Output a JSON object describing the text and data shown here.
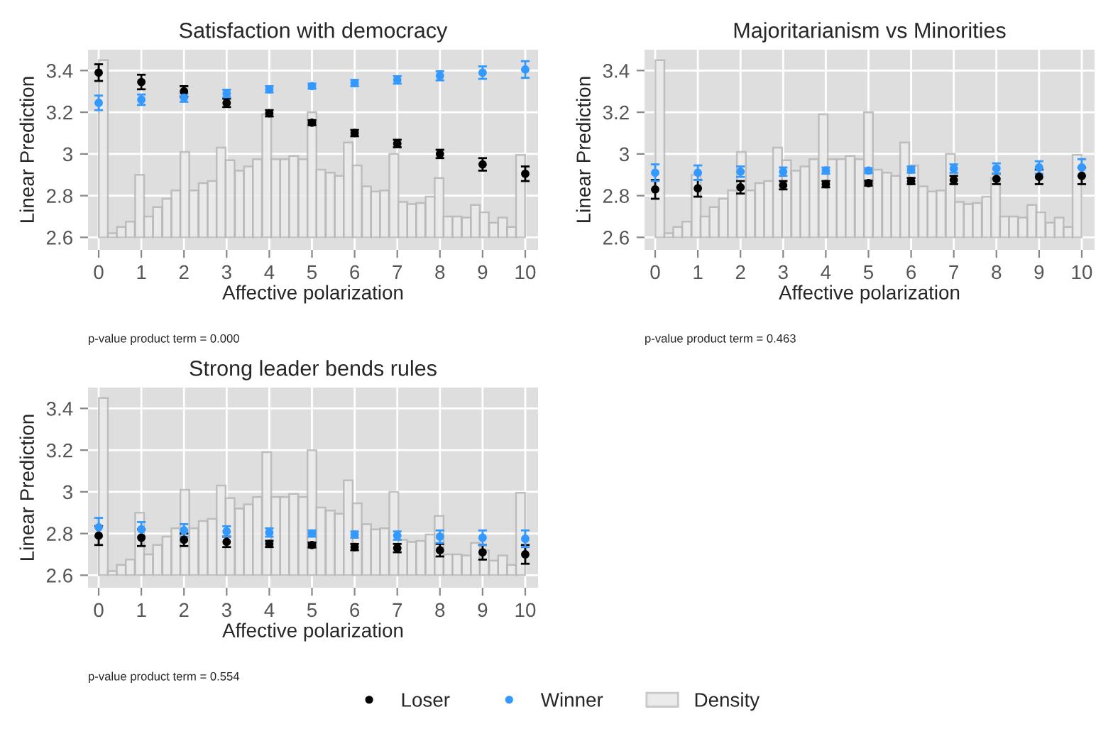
{
  "chart_data": [
    {
      "type": "scatter",
      "title": "Satisfaction with democracy",
      "xlabel": "Affective polarization",
      "ylabel": "Linear Prediction",
      "annotations": [
        "p-value product term = 0.000"
      ],
      "xlim": [
        -0.25,
        10.3
      ],
      "ylim": [
        2.54,
        3.5
      ],
      "xticks": [
        0,
        1,
        2,
        3,
        4,
        5,
        6,
        7,
        8,
        9,
        10
      ],
      "yticks": [
        2.6,
        2.8,
        3,
        3.2,
        3.4
      ],
      "grid": true,
      "legend": "bottom",
      "marker": "circle",
      "series": [
        {
          "name": "Density",
          "type": "bar",
          "color": "#ebebeb",
          "x": [
            0.11,
            0.32,
            0.53,
            0.74,
            0.96,
            1.17,
            1.38,
            1.6,
            1.81,
            2.02,
            2.23,
            2.45,
            2.66,
            2.87,
            3.08,
            3.3,
            3.51,
            3.72,
            3.94,
            4.15,
            4.36,
            4.57,
            4.79,
            5.0,
            5.21,
            5.43,
            5.64,
            5.85,
            6.06,
            6.28,
            6.49,
            6.7,
            6.92,
            7.13,
            7.34,
            7.55,
            7.77,
            7.98,
            8.19,
            8.4,
            8.62,
            8.83,
            9.04,
            9.26,
            9.47,
            9.68,
            9.89
          ],
          "values": [
            0.85,
            0.02,
            0.05,
            0.075,
            0.3,
            0.1,
            0.145,
            0.185,
            0.225,
            0.41,
            0.225,
            0.26,
            0.27,
            0.43,
            0.37,
            0.32,
            0.34,
            0.375,
            0.59,
            0.375,
            0.375,
            0.39,
            0.375,
            0.6,
            0.325,
            0.31,
            0.295,
            0.455,
            0.345,
            0.245,
            0.22,
            0.225,
            0.4,
            0.17,
            0.16,
            0.165,
            0.195,
            0.285,
            0.1,
            0.1,
            0.095,
            0.155,
            0.12,
            0.07,
            0.095,
            0.05,
            0.395
          ],
          "base": [
            2.6,
            2.6,
            2.6,
            2.6,
            2.6,
            2.6,
            2.6,
            2.6,
            2.6,
            2.6,
            2.6,
            2.6,
            2.6,
            2.6,
            2.6,
            2.6,
            2.6,
            2.6,
            2.6,
            2.6,
            2.6,
            2.6,
            2.6,
            2.6,
            2.6,
            2.6,
            2.6,
            2.6,
            2.6,
            2.6,
            2.6,
            2.6,
            2.6,
            2.6,
            2.6,
            2.6,
            2.6,
            2.6,
            2.6,
            2.6,
            2.6,
            2.6,
            2.6,
            2.6,
            2.6,
            2.6,
            2.6
          ]
        },
        {
          "name": "Loser",
          "color": "#000000",
          "x": [
            0,
            1,
            2,
            3,
            4,
            5,
            6,
            7,
            8,
            9,
            10
          ],
          "values": [
            3.39,
            3.345,
            3.3,
            3.245,
            3.195,
            3.15,
            3.1,
            3.05,
            3.0,
            2.95,
            2.905
          ],
          "errors": [
            0.04,
            0.035,
            0.025,
            0.02,
            0.015,
            0.012,
            0.015,
            0.018,
            0.02,
            0.03,
            0.035
          ]
        },
        {
          "name": "Winner",
          "color": "#3399ff",
          "x": [
            0,
            1,
            2,
            3,
            4,
            5,
            6,
            7,
            8,
            9,
            10
          ],
          "values": [
            3.245,
            3.26,
            3.27,
            3.29,
            3.31,
            3.325,
            3.34,
            3.355,
            3.375,
            3.39,
            3.405
          ],
          "errors": [
            0.035,
            0.025,
            0.02,
            0.018,
            0.015,
            0.012,
            0.015,
            0.018,
            0.022,
            0.03,
            0.04
          ]
        }
      ]
    },
    {
      "type": "scatter",
      "title": "Majoritarianism vs Minorities",
      "xlabel": "Affective polarization",
      "ylabel": "Linear Prediction",
      "annotations": [
        "p-value product term = 0.463"
      ],
      "xlim": [
        -0.25,
        10.3
      ],
      "ylim": [
        2.54,
        3.5
      ],
      "xticks": [
        0,
        1,
        2,
        3,
        4,
        5,
        6,
        7,
        8,
        9,
        10
      ],
      "yticks": [
        2.6,
        2.8,
        3,
        3.2,
        3.4
      ],
      "grid": true,
      "legend": "bottom",
      "marker": "circle",
      "series": [
        {
          "name": "Density",
          "type": "bar",
          "color": "#ebebeb",
          "x": [
            0.11,
            0.32,
            0.53,
            0.74,
            0.96,
            1.17,
            1.38,
            1.6,
            1.81,
            2.02,
            2.23,
            2.45,
            2.66,
            2.87,
            3.08,
            3.3,
            3.51,
            3.72,
            3.94,
            4.15,
            4.36,
            4.57,
            4.79,
            5.0,
            5.21,
            5.43,
            5.64,
            5.85,
            6.06,
            6.28,
            6.49,
            6.7,
            6.92,
            7.13,
            7.34,
            7.55,
            7.77,
            7.98,
            8.19,
            8.4,
            8.62,
            8.83,
            9.04,
            9.26,
            9.47,
            9.68,
            9.89
          ],
          "values": [
            0.85,
            0.02,
            0.05,
            0.075,
            0.3,
            0.1,
            0.145,
            0.185,
            0.225,
            0.41,
            0.225,
            0.26,
            0.27,
            0.43,
            0.37,
            0.32,
            0.34,
            0.375,
            0.59,
            0.375,
            0.375,
            0.39,
            0.375,
            0.6,
            0.325,
            0.31,
            0.295,
            0.455,
            0.345,
            0.245,
            0.22,
            0.225,
            0.4,
            0.17,
            0.16,
            0.165,
            0.195,
            0.285,
            0.1,
            0.1,
            0.095,
            0.155,
            0.12,
            0.07,
            0.095,
            0.05,
            0.395
          ],
          "base": [
            2.6,
            2.6,
            2.6,
            2.6,
            2.6,
            2.6,
            2.6,
            2.6,
            2.6,
            2.6,
            2.6,
            2.6,
            2.6,
            2.6,
            2.6,
            2.6,
            2.6,
            2.6,
            2.6,
            2.6,
            2.6,
            2.6,
            2.6,
            2.6,
            2.6,
            2.6,
            2.6,
            2.6,
            2.6,
            2.6,
            2.6,
            2.6,
            2.6,
            2.6,
            2.6,
            2.6,
            2.6,
            2.6,
            2.6,
            2.6,
            2.6,
            2.6,
            2.6,
            2.6,
            2.6,
            2.6,
            2.6
          ]
        },
        {
          "name": "Loser",
          "color": "#000000",
          "x": [
            0,
            1,
            2,
            3,
            4,
            5,
            6,
            7,
            8,
            9,
            10
          ],
          "values": [
            2.83,
            2.835,
            2.84,
            2.85,
            2.855,
            2.86,
            2.87,
            2.875,
            2.88,
            2.89,
            2.895
          ],
          "errors": [
            0.045,
            0.04,
            0.03,
            0.02,
            0.015,
            0.012,
            0.015,
            0.02,
            0.025,
            0.035,
            0.04
          ]
        },
        {
          "name": "Winner",
          "color": "#3399ff",
          "x": [
            0,
            1,
            2,
            3,
            4,
            5,
            6,
            7,
            8,
            9,
            10
          ],
          "values": [
            2.91,
            2.91,
            2.915,
            2.915,
            2.92,
            2.92,
            2.925,
            2.93,
            2.93,
            2.935,
            2.935
          ],
          "errors": [
            0.04,
            0.035,
            0.025,
            0.02,
            0.015,
            0.012,
            0.015,
            0.02,
            0.025,
            0.03,
            0.04
          ]
        }
      ]
    },
    {
      "type": "scatter",
      "title": "Strong leader bends rules",
      "xlabel": "Affective polarization",
      "ylabel": "Linear Prediction",
      "annotations": [
        "p-value product term = 0.554"
      ],
      "xlim": [
        -0.25,
        10.3
      ],
      "ylim": [
        2.54,
        3.5
      ],
      "xticks": [
        0,
        1,
        2,
        3,
        4,
        5,
        6,
        7,
        8,
        9,
        10
      ],
      "yticks": [
        2.6,
        2.8,
        3,
        3.2,
        3.4
      ],
      "grid": true,
      "legend": "bottom",
      "marker": "circle",
      "series": [
        {
          "name": "Density",
          "type": "bar",
          "color": "#ebebeb",
          "x": [
            0.11,
            0.32,
            0.53,
            0.74,
            0.96,
            1.17,
            1.38,
            1.6,
            1.81,
            2.02,
            2.23,
            2.45,
            2.66,
            2.87,
            3.08,
            3.3,
            3.51,
            3.72,
            3.94,
            4.15,
            4.36,
            4.57,
            4.79,
            5.0,
            5.21,
            5.43,
            5.64,
            5.85,
            6.06,
            6.28,
            6.49,
            6.7,
            6.92,
            7.13,
            7.34,
            7.55,
            7.77,
            7.98,
            8.19,
            8.4,
            8.62,
            8.83,
            9.04,
            9.26,
            9.47,
            9.68,
            9.89
          ],
          "values": [
            0.85,
            0.02,
            0.05,
            0.075,
            0.3,
            0.1,
            0.145,
            0.185,
            0.225,
            0.41,
            0.225,
            0.26,
            0.27,
            0.43,
            0.37,
            0.32,
            0.34,
            0.375,
            0.59,
            0.375,
            0.375,
            0.39,
            0.375,
            0.6,
            0.325,
            0.31,
            0.295,
            0.455,
            0.345,
            0.245,
            0.22,
            0.225,
            0.4,
            0.17,
            0.16,
            0.165,
            0.195,
            0.285,
            0.1,
            0.1,
            0.095,
            0.155,
            0.12,
            0.07,
            0.095,
            0.05,
            0.395
          ],
          "base": [
            2.6,
            2.6,
            2.6,
            2.6,
            2.6,
            2.6,
            2.6,
            2.6,
            2.6,
            2.6,
            2.6,
            2.6,
            2.6,
            2.6,
            2.6,
            2.6,
            2.6,
            2.6,
            2.6,
            2.6,
            2.6,
            2.6,
            2.6,
            2.6,
            2.6,
            2.6,
            2.6,
            2.6,
            2.6,
            2.6,
            2.6,
            2.6,
            2.6,
            2.6,
            2.6,
            2.6,
            2.6,
            2.6,
            2.6,
            2.6,
            2.6,
            2.6,
            2.6,
            2.6,
            2.6,
            2.6,
            2.6
          ]
        },
        {
          "name": "Loser",
          "color": "#000000",
          "x": [
            0,
            1,
            2,
            3,
            4,
            5,
            6,
            7,
            8,
            9,
            10
          ],
          "values": [
            2.79,
            2.78,
            2.77,
            2.76,
            2.75,
            2.745,
            2.735,
            2.73,
            2.72,
            2.71,
            2.7
          ],
          "errors": [
            0.045,
            0.04,
            0.03,
            0.025,
            0.015,
            0.012,
            0.015,
            0.02,
            0.03,
            0.035,
            0.045
          ]
        },
        {
          "name": "Winner",
          "color": "#3399ff",
          "x": [
            0,
            1,
            2,
            3,
            4,
            5,
            6,
            7,
            8,
            9,
            10
          ],
          "values": [
            2.83,
            2.82,
            2.815,
            2.81,
            2.805,
            2.8,
            2.795,
            2.79,
            2.785,
            2.78,
            2.775
          ],
          "errors": [
            0.045,
            0.035,
            0.03,
            0.025,
            0.02,
            0.015,
            0.015,
            0.02,
            0.03,
            0.035,
            0.04
          ]
        }
      ]
    }
  ]
}
